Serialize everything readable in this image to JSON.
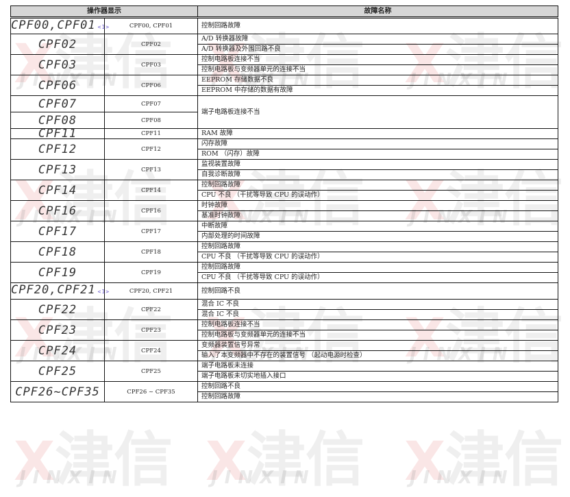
{
  "watermark": {
    "mark": "X",
    "cn": "津信",
    "en": "JINXIN"
  },
  "table": {
    "headers": [
      "操作器显示",
      "故障名称"
    ],
    "groups": [
      {
        "entries": [
          {
            "display": "CPF00,CPF01",
            "note": "<1>",
            "code": "CPF00, CPF01"
          }
        ],
        "faults": [
          "控制回路故障"
        ]
      },
      {
        "entries": [
          {
            "display": "CPF02",
            "code": "CPF02"
          }
        ],
        "faults": [
          "A/D 转换器故障",
          "A/D 转换器及外围回路不良"
        ]
      },
      {
        "entries": [
          {
            "display": "CPF03",
            "code": "CPF03"
          }
        ],
        "faults": [
          "控制电路板连接不当",
          "控制电路板与变频器单元的连接不当"
        ]
      },
      {
        "entries": [
          {
            "display": "CPF06",
            "code": "CPF06"
          }
        ],
        "faults": [
          "EEPROM 存储数据不良",
          "EEPROM 中存储的数据有故障"
        ]
      },
      {
        "entries": [
          {
            "display": "CPF07",
            "code": "CPF07"
          },
          {
            "display": "CPF08",
            "code": "CPF08"
          }
        ],
        "faults": [
          "端子电路板连接不当"
        ]
      },
      {
        "entries": [
          {
            "display": "CPF11",
            "code": "CPF11"
          }
        ],
        "faults": [
          "RAM 故障"
        ]
      },
      {
        "entries": [
          {
            "display": "CPF12",
            "code": "CPF12"
          }
        ],
        "faults": [
          "闪存故障",
          "ROM （闪存）故障"
        ]
      },
      {
        "entries": [
          {
            "display": "CPF13",
            "code": "CPF13"
          }
        ],
        "faults": [
          "监视装置故障",
          "自我诊断故障"
        ]
      },
      {
        "entries": [
          {
            "display": "CPF14",
            "code": "CPF14"
          }
        ],
        "faults": [
          "控制回路故障",
          "CPU 不良 （干扰等导致 CPU 的误动作）"
        ]
      },
      {
        "entries": [
          {
            "display": "CPF16",
            "code": "CPF16"
          }
        ],
        "faults": [
          "时钟故障",
          "基准时钟故障"
        ]
      },
      {
        "entries": [
          {
            "display": "CPF17",
            "code": "CPF17"
          }
        ],
        "faults": [
          "中断故障",
          "内部处理的时间故障"
        ]
      },
      {
        "entries": [
          {
            "display": "CPF18",
            "code": "CPF18"
          }
        ],
        "faults": [
          "控制回路故障",
          "CPU 不良 （干扰等导致 CPU 的误动作）"
        ]
      },
      {
        "entries": [
          {
            "display": "CPF19",
            "code": "CPF19"
          }
        ],
        "faults": [
          "控制回路故障",
          "CPU 不良 （干扰等导致 CPU 的误动作）"
        ]
      },
      {
        "entries": [
          {
            "display": "CPF20,CPF21",
            "note": "<1>",
            "code": "CPF20, CPF21"
          }
        ],
        "faults": [
          "控制回路不良"
        ]
      },
      {
        "entries": [
          {
            "display": "CPF22",
            "code": "CPF22"
          }
        ],
        "faults": [
          "混合 IC 不良",
          "混合 IC 不良"
        ]
      },
      {
        "entries": [
          {
            "display": "CPF23",
            "code": "CPF23"
          }
        ],
        "faults": [
          "控制电路板连接不当",
          "控制电路板与变频器单元的连接不当"
        ]
      },
      {
        "entries": [
          {
            "display": "CPF24",
            "code": "CPF24"
          }
        ],
        "faults": [
          "变频器装置信号异常",
          "输入了本变频器中不存在的装置信号 （起动电源时检查）"
        ]
      },
      {
        "entries": [
          {
            "display": "CPF25",
            "code": "CPF25"
          }
        ],
        "faults": [
          "端子电路板未连接",
          "端子电路板未切实地插入接口"
        ]
      },
      {
        "entries": [
          {
            "display": "CPF26~CPF35",
            "code": "CPF26 ~ CPF35"
          }
        ],
        "faults": [
          "控制回路不良",
          "控制回路故障"
        ]
      }
    ]
  }
}
